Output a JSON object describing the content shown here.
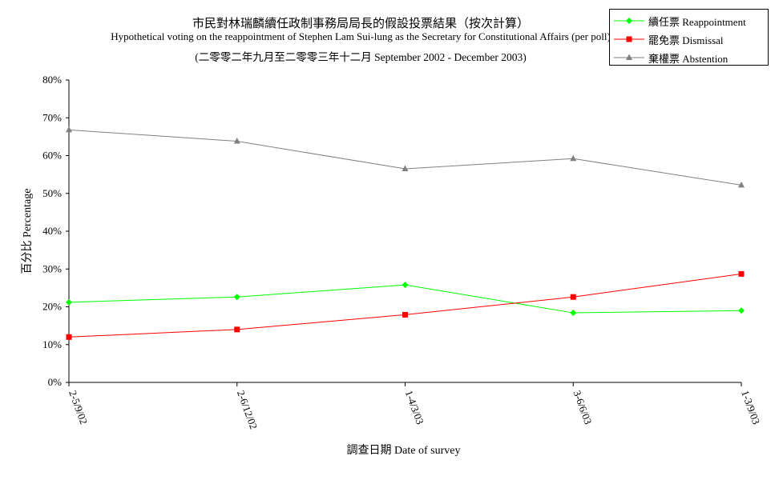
{
  "title": "市民對林瑞麟續任政制事務局局長的假設投票結果（按次計算）",
  "subtitle": "Hypothetical voting on the reappointment of Stephen Lam Sui-lung as the Secretary for Constitutional Affairs (per poll)",
  "period": "(二零零二年九月至二零零三年十二月 September 2002 - December 2003)",
  "chart_data": {
    "type": "line",
    "categories": [
      "2-5/9/02",
      "2-6/12/02",
      "1-4/3/03",
      "3-6/6/03",
      "1-3/9/03"
    ],
    "xlabel": "調查日期 Date of survey",
    "ylabel": "百分比 Percentage",
    "ylim": [
      0,
      80
    ],
    "yticks": [
      "0%",
      "10%",
      "20%",
      "30%",
      "40%",
      "50%",
      "60%",
      "70%",
      "80%"
    ],
    "grid": false,
    "legend_position": "top-right",
    "series": [
      {
        "name": "續任票 Reappointment",
        "color": "#00ff00",
        "marker": "diamond",
        "values": [
          21.2,
          22.6,
          25.8,
          18.4,
          19.0
        ]
      },
      {
        "name": "罷免票 Dismissal",
        "color": "#ff0000",
        "marker": "square",
        "values": [
          12.0,
          14.0,
          17.9,
          22.6,
          28.7
        ]
      },
      {
        "name": "棄權票 Abstention",
        "color": "#808080",
        "marker": "triangle",
        "values": [
          66.8,
          63.8,
          56.5,
          59.2,
          52.2
        ]
      }
    ]
  }
}
